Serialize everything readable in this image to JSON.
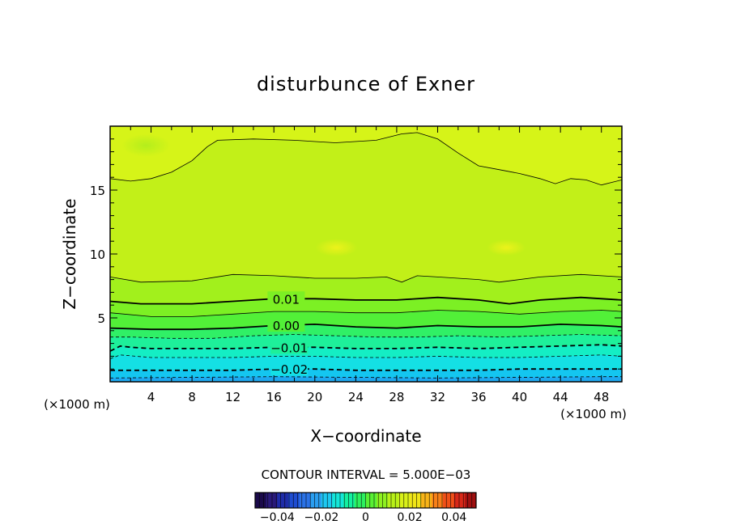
{
  "chart_data": {
    "type": "contour",
    "title": "disturbunce of Exner",
    "xlabel": "X−coordinate",
    "ylabel": "Z−coordinate",
    "x_unit_label": "(×1000 m)",
    "z_unit_label": "(×1000 m)",
    "xlim": [
      0,
      50
    ],
    "ylim": [
      0,
      20
    ],
    "x_ticks": [
      4,
      8,
      12,
      16,
      20,
      24,
      28,
      32,
      36,
      40,
      44,
      48
    ],
    "y_ticks": [
      5,
      10,
      15
    ],
    "contour_interval_label": "CONTOUR INTERVAL = 5.000E−03",
    "contour_interval": 0.005,
    "contour_labels": [
      {
        "text": "0.01",
        "value": 0.01,
        "x": 17.2
      },
      {
        "text": "0.00",
        "value": 0.0,
        "x": 17.2
      },
      {
        "text": "−0.01",
        "value": -0.01,
        "x": 17.5
      },
      {
        "text": "−0.02",
        "value": -0.02,
        "x": 17.5
      }
    ],
    "contours": [
      {
        "value": 0.02,
        "style": "solid-thin",
        "points": [
          [
            0,
            15.9
          ],
          [
            2,
            15.7
          ],
          [
            4,
            15.9
          ],
          [
            6,
            16.4
          ],
          [
            8,
            17.3
          ],
          [
            9.5,
            18.4
          ],
          [
            10.5,
            18.9
          ],
          [
            14,
            19.0
          ],
          [
            18,
            18.9
          ],
          [
            22,
            18.7
          ],
          [
            26,
            18.9
          ],
          [
            28.5,
            19.4
          ],
          [
            30,
            19.5
          ],
          [
            32,
            19.0
          ],
          [
            34,
            17.9
          ],
          [
            36,
            16.9
          ],
          [
            38,
            16.6
          ],
          [
            40,
            16.3
          ],
          [
            42,
            15.9
          ],
          [
            43.5,
            15.5
          ],
          [
            45,
            15.9
          ],
          [
            46.5,
            15.8
          ],
          [
            48,
            15.4
          ],
          [
            50,
            15.8
          ]
        ]
      },
      {
        "value": 0.015,
        "style": "solid-thin",
        "points": [
          [
            0,
            8.2
          ],
          [
            3,
            7.8
          ],
          [
            8,
            7.9
          ],
          [
            12,
            8.4
          ],
          [
            16,
            8.3
          ],
          [
            20,
            8.1
          ],
          [
            24,
            8.1
          ],
          [
            27,
            8.2
          ],
          [
            28.5,
            7.8
          ],
          [
            30,
            8.3
          ],
          [
            32,
            8.2
          ],
          [
            36,
            8.0
          ],
          [
            38,
            7.8
          ],
          [
            42,
            8.2
          ],
          [
            46,
            8.4
          ],
          [
            50,
            8.2
          ]
        ]
      },
      {
        "value": 0.01,
        "style": "solid-thick",
        "points": [
          [
            0,
            6.3
          ],
          [
            3,
            6.1
          ],
          [
            8,
            6.1
          ],
          [
            12,
            6.3
          ],
          [
            16,
            6.5
          ],
          [
            20,
            6.5
          ],
          [
            24,
            6.4
          ],
          [
            28,
            6.4
          ],
          [
            32,
            6.6
          ],
          [
            36,
            6.4
          ],
          [
            39,
            6.1
          ],
          [
            42,
            6.4
          ],
          [
            46,
            6.6
          ],
          [
            50,
            6.4
          ]
        ]
      },
      {
        "value": 0.005,
        "style": "solid-thin",
        "points": [
          [
            0,
            5.4
          ],
          [
            4,
            5.1
          ],
          [
            8,
            5.1
          ],
          [
            12,
            5.3
          ],
          [
            16,
            5.5
          ],
          [
            20,
            5.5
          ],
          [
            24,
            5.4
          ],
          [
            28,
            5.4
          ],
          [
            32,
            5.6
          ],
          [
            36,
            5.5
          ],
          [
            40,
            5.3
          ],
          [
            44,
            5.5
          ],
          [
            48,
            5.6
          ],
          [
            50,
            5.5
          ]
        ]
      },
      {
        "value": 0.0,
        "style": "solid-thick",
        "points": [
          [
            0,
            4.2
          ],
          [
            4,
            4.1
          ],
          [
            8,
            4.1
          ],
          [
            12,
            4.2
          ],
          [
            16,
            4.4
          ],
          [
            20,
            4.5
          ],
          [
            24,
            4.3
          ],
          [
            28,
            4.2
          ],
          [
            32,
            4.4
          ],
          [
            36,
            4.3
          ],
          [
            40,
            4.3
          ],
          [
            44,
            4.5
          ],
          [
            48,
            4.4
          ],
          [
            50,
            4.3
          ]
        ]
      },
      {
        "value": -0.005,
        "style": "dashed-thin",
        "points": [
          [
            0,
            3.5
          ],
          [
            2,
            3.5
          ],
          [
            6,
            3.4
          ],
          [
            10,
            3.4
          ],
          [
            14,
            3.6
          ],
          [
            18,
            3.7
          ],
          [
            22,
            3.6
          ],
          [
            26,
            3.5
          ],
          [
            30,
            3.5
          ],
          [
            34,
            3.6
          ],
          [
            38,
            3.5
          ],
          [
            42,
            3.6
          ],
          [
            46,
            3.7
          ],
          [
            50,
            3.6
          ]
        ]
      },
      {
        "value": -0.01,
        "style": "dashed-thick",
        "points": [
          [
            0,
            2.4
          ],
          [
            1,
            2.8
          ],
          [
            2,
            2.7
          ],
          [
            4,
            2.6
          ],
          [
            8,
            2.6
          ],
          [
            12,
            2.6
          ],
          [
            16,
            2.7
          ],
          [
            20,
            2.7
          ],
          [
            24,
            2.6
          ],
          [
            28,
            2.6
          ],
          [
            32,
            2.7
          ],
          [
            36,
            2.6
          ],
          [
            40,
            2.7
          ],
          [
            44,
            2.8
          ],
          [
            48,
            2.9
          ],
          [
            50,
            2.8
          ]
        ]
      },
      {
        "value": -0.015,
        "style": "dashed-thin",
        "points": [
          [
            0,
            1.8
          ],
          [
            1,
            2.1
          ],
          [
            4,
            1.9
          ],
          [
            8,
            1.9
          ],
          [
            12,
            1.9
          ],
          [
            16,
            2.0
          ],
          [
            20,
            2.0
          ],
          [
            24,
            1.9
          ],
          [
            28,
            1.9
          ],
          [
            32,
            2.0
          ],
          [
            36,
            1.9
          ],
          [
            40,
            1.9
          ],
          [
            44,
            2.0
          ],
          [
            48,
            2.1
          ],
          [
            50,
            2.0
          ]
        ]
      },
      {
        "value": -0.02,
        "style": "dashed-thick",
        "points": [
          [
            0,
            0.9
          ],
          [
            4,
            0.9
          ],
          [
            8,
            0.9
          ],
          [
            12,
            0.9
          ],
          [
            16,
            1.0
          ],
          [
            20,
            1.0
          ],
          [
            24,
            0.9
          ],
          [
            28,
            0.9
          ],
          [
            32,
            0.9
          ],
          [
            36,
            0.9
          ],
          [
            40,
            1.0
          ],
          [
            44,
            1.0
          ],
          [
            48,
            1.0
          ],
          [
            50,
            1.0
          ]
        ]
      },
      {
        "value": -0.025,
        "style": "dashed-thin",
        "points": [
          [
            0,
            0.3
          ],
          [
            8,
            0.35
          ],
          [
            16,
            0.4
          ],
          [
            24,
            0.35
          ],
          [
            32,
            0.3
          ],
          [
            40,
            0.35
          ],
          [
            48,
            0.4
          ],
          [
            50,
            0.4
          ]
        ]
      }
    ],
    "colorbar": {
      "min": -0.05,
      "max": 0.05,
      "ticks": [
        {
          "value": -0.04,
          "label": "−0.04"
        },
        {
          "value": -0.02,
          "label": "−0.02"
        },
        {
          "value": 0.0,
          "label": "0"
        },
        {
          "value": 0.02,
          "label": "0.02"
        },
        {
          "value": 0.04,
          "label": "0.04"
        }
      ],
      "colors": [
        "#1a0a4a",
        "#2a1a7a",
        "#1e2ca8",
        "#1e4cd0",
        "#2a72e6",
        "#2a9ef0",
        "#1ec8f0",
        "#14e6d8",
        "#14f0a0",
        "#2cf060",
        "#58f034",
        "#8ef020",
        "#b8f018",
        "#d8f018",
        "#f0e418",
        "#f8b418",
        "#f88018",
        "#f05018",
        "#d82818",
        "#a01010"
      ]
    },
    "fill_colors": {
      "below_-0.025": "#1ea8f0",
      "-0.025_-0.02": "#14c6f0",
      "-0.02_-0.015": "#14e0e4",
      "-0.015_-0.01": "#14eec4",
      "-0.01_-0.005": "#1ef09a",
      "-0.005_0": "#30f066",
      "0_0.005": "#52f038",
      "0.005_0.01": "#7cf024",
      "0.01_0.015": "#a2f01c",
      "0.015_0.02": "#c2f018",
      "0.02_0.025": "#d6f418",
      "above_0.025": "#ccf416"
    }
  }
}
